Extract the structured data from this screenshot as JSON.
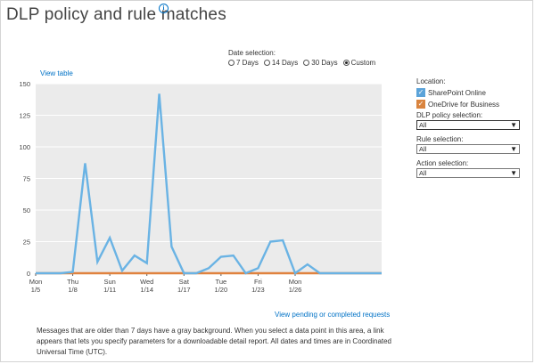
{
  "title": "DLP policy and rule matches",
  "info_icon": "info-icon",
  "date_selection": {
    "label": "Date selection:",
    "options": [
      "7 Days",
      "14 Days",
      "30 Days",
      "Custom"
    ],
    "selected": "Custom"
  },
  "links": {
    "view_table": "View table",
    "view_pending": "View pending or completed requests"
  },
  "side": {
    "location_label": "Location:",
    "locations": [
      {
        "label": "SharePoint Online",
        "checked": true,
        "color": "#5ba3d9"
      },
      {
        "label": "OneDrive for Business",
        "checked": true,
        "color": "#d9843f"
      }
    ],
    "policy_label": "DLP policy selection:",
    "policy_value": "All",
    "rule_label": "Rule selection:",
    "rule_value": "All",
    "action_label": "Action selection:",
    "action_value": "All"
  },
  "note": "Messages that are older than 7 days have a gray background. When you select a data point in this area, a link appears that lets you specify parameters for a downloadable detail report. All dates and times are in Coordinated Universal Time (UTC).",
  "chart_data": {
    "type": "line",
    "ylim": [
      0,
      150
    ],
    "yticks": [
      0,
      25,
      50,
      75,
      100,
      125,
      150
    ],
    "xlim": [
      0,
      28
    ],
    "xticks": [
      {
        "x": 0,
        "day": "Mon",
        "date": "1/5"
      },
      {
        "x": 3,
        "day": "Thu",
        "date": "1/8"
      },
      {
        "x": 6,
        "day": "Sun",
        "date": "1/11"
      },
      {
        "x": 9,
        "day": "Wed",
        "date": "1/14"
      },
      {
        "x": 12,
        "day": "Sat",
        "date": "1/17"
      },
      {
        "x": 15,
        "day": "Tue",
        "date": "1/20"
      },
      {
        "x": 18,
        "day": "Fri",
        "date": "1/23"
      },
      {
        "x": 21,
        "day": "Mon",
        "date": "1/26"
      }
    ],
    "grid": true,
    "colors": {
      "sharepoint": "#6ab3e4",
      "onedrive": "#e0823e",
      "bg": "#ebebeb"
    },
    "series": [
      {
        "name": "SharePoint Online",
        "x": [
          0,
          1,
          2,
          3,
          4,
          5,
          6,
          7,
          8,
          9,
          10,
          11,
          12,
          13,
          14,
          15,
          16,
          17,
          18,
          19,
          20,
          21,
          22,
          23,
          24,
          25,
          26,
          27,
          28
        ],
        "values": [
          0,
          0,
          0,
          1,
          87,
          9,
          28,
          2,
          14,
          8,
          142,
          21,
          0,
          0,
          4,
          13,
          14,
          0,
          4,
          25,
          26,
          0,
          7,
          0,
          0,
          0,
          0,
          0,
          0
        ]
      },
      {
        "name": "OneDrive for Business",
        "x": [
          0,
          1,
          2,
          3,
          4,
          5,
          6,
          7,
          8,
          9,
          10,
          11,
          12,
          13,
          14,
          15,
          16,
          17,
          18,
          19,
          20,
          21,
          22,
          23,
          24,
          25,
          26,
          27,
          28
        ],
        "values": [
          0,
          0,
          0,
          0,
          0,
          0,
          0,
          0,
          0,
          0,
          0,
          0,
          0,
          0,
          0,
          0,
          0,
          0,
          0,
          0,
          0,
          0,
          0,
          0,
          0,
          0,
          0,
          0,
          0
        ]
      }
    ]
  }
}
